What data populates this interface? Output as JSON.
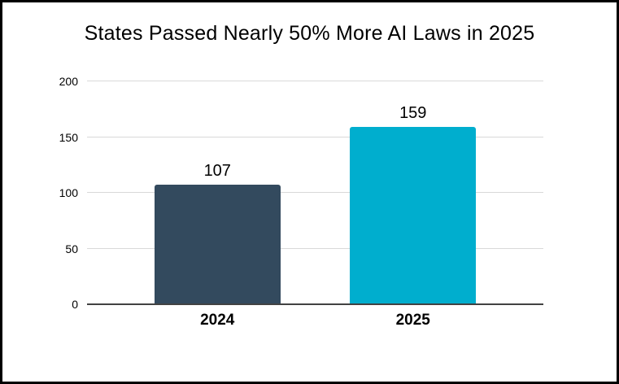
{
  "window": {
    "background_color": "#ffffff",
    "border_color": "#000000"
  },
  "chart_data": {
    "type": "bar",
    "title": "States Passed Nearly 50% More AI Laws in 2025",
    "categories": [
      "2024",
      "2025"
    ],
    "values": [
      107,
      159
    ],
    "value_labels": [
      "107",
      "159"
    ],
    "bar_colors": [
      "#334A5E",
      "#00AECE"
    ],
    "xlabel": "",
    "ylabel": "",
    "ylim": [
      0,
      200
    ],
    "yticks": [
      0,
      50,
      100,
      150,
      200
    ],
    "grid": "horizontal",
    "legend": "none",
    "gridline_color": "#d9d9d9",
    "axis_line_color": "#424242",
    "text_color": "#000000"
  }
}
